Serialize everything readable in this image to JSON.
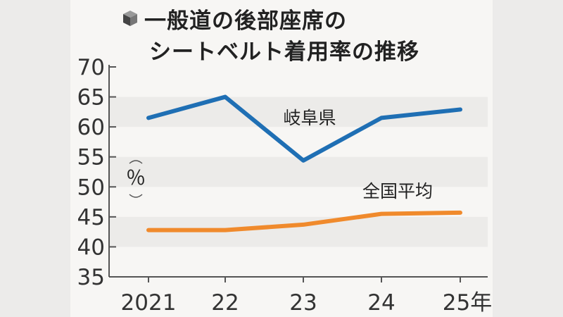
{
  "chart_data": {
    "type": "line",
    "title": [
      "一般道の後部座席の",
      "シートベルト着用率の推移"
    ],
    "ylabel": "％",
    "x": [
      "2021",
      "22",
      "23",
      "24",
      "25年"
    ],
    "ylim": [
      35,
      70
    ],
    "yticks": [
      35,
      40,
      45,
      50,
      55,
      60,
      65,
      70
    ],
    "series": [
      {
        "name": "岐阜県",
        "color": "#1f6fb4",
        "values": [
          61.5,
          65.0,
          54.4,
          61.5,
          62.9
        ]
      },
      {
        "name": "全国平均",
        "color": "#f08a2c",
        "values": [
          42.8,
          42.8,
          43.7,
          45.5,
          45.7
        ]
      }
    ],
    "grid": "alternating bands"
  }
}
